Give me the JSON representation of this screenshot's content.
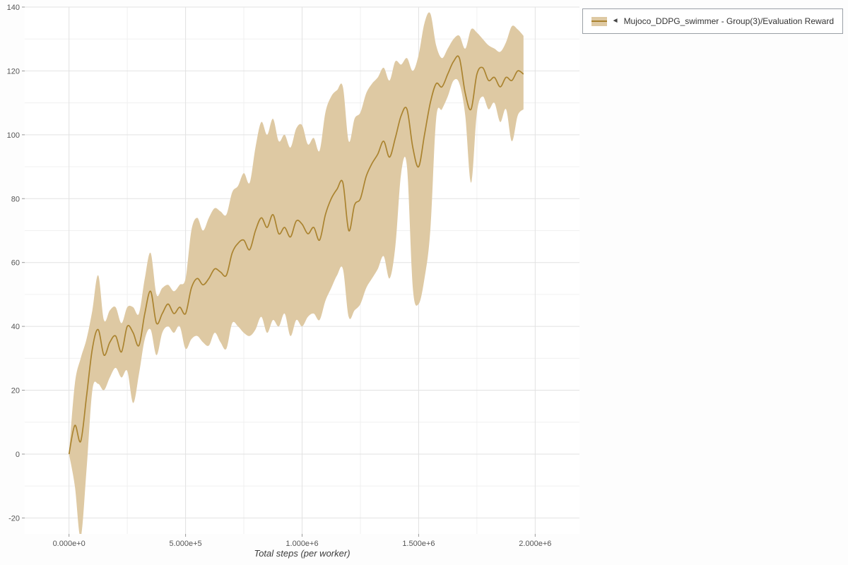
{
  "legend": {
    "collapse_icon": "◄",
    "label": "Mujoco_DDPG_swimmer - Group(3)/Evaluation Reward",
    "line_color": "#aa832f",
    "band_color": "#dec9a3"
  },
  "axes": {
    "x_title": "Total steps (per worker)"
  },
  "chart_data": {
    "type": "line",
    "title": "",
    "xlabel": "Total steps (per worker)",
    "ylabel": "",
    "legend_position": "top-right",
    "grid": true,
    "xlim": [
      -190000,
      2190000
    ],
    "ylim": [
      -25,
      140
    ],
    "xticks": [
      0,
      500000,
      1000000,
      1500000,
      2000000
    ],
    "xtick_labels": [
      "0.000e+0",
      "5.000e+5",
      "1.000e+6",
      "1.500e+6",
      "2.000e+6"
    ],
    "yticks": [
      -20,
      0,
      20,
      40,
      60,
      80,
      100,
      120,
      140
    ],
    "series": [
      {
        "name": "Mujoco_DDPG_swimmer - Group(3)/Evaluation Reward",
        "x": [
          0,
          25000,
          50000,
          75000,
          100000,
          125000,
          150000,
          175000,
          200000,
          225000,
          250000,
          275000,
          300000,
          325000,
          350000,
          375000,
          400000,
          425000,
          450000,
          475000,
          500000,
          525000,
          550000,
          575000,
          600000,
          625000,
          650000,
          675000,
          700000,
          725000,
          750000,
          775000,
          800000,
          825000,
          850000,
          875000,
          900000,
          925000,
          950000,
          975000,
          1000000,
          1025000,
          1050000,
          1075000,
          1100000,
          1125000,
          1150000,
          1175000,
          1200000,
          1225000,
          1250000,
          1275000,
          1300000,
          1325000,
          1350000,
          1375000,
          1400000,
          1425000,
          1450000,
          1475000,
          1500000,
          1525000,
          1550000,
          1575000,
          1600000,
          1625000,
          1650000,
          1675000,
          1700000,
          1725000,
          1750000,
          1775000,
          1800000,
          1825000,
          1850000,
          1875000,
          1900000,
          1925000,
          1950000
        ],
        "mean": [
          0,
          9,
          4,
          18,
          33,
          39,
          31,
          35,
          37,
          32,
          40,
          38,
          34,
          44,
          51,
          41,
          44,
          47,
          44,
          46,
          44,
          52,
          55,
          53,
          55,
          58,
          57,
          56,
          63,
          66,
          67,
          64,
          70,
          74,
          71,
          75,
          69,
          71,
          68,
          73,
          72,
          69,
          71,
          67,
          75,
          80,
          83,
          85,
          70,
          78,
          80,
          87,
          91,
          94,
          98,
          93,
          99,
          106,
          108,
          96,
          90,
          100,
          110,
          116,
          115,
          119,
          123,
          124,
          113,
          108,
          119,
          121,
          117,
          118,
          115,
          118,
          117,
          120,
          119
        ],
        "lower": [
          0,
          -10,
          -26,
          -5,
          20,
          22,
          20,
          24,
          27,
          24,
          26,
          16,
          25,
          36,
          39,
          31,
          38,
          40,
          38,
          40,
          33,
          36,
          37,
          35,
          34,
          38,
          35,
          33,
          41,
          40,
          38,
          37,
          39,
          43,
          38,
          42,
          40,
          44,
          37,
          42,
          40,
          43,
          44,
          42,
          48,
          52,
          56,
          58,
          43,
          45,
          47,
          52,
          55,
          58,
          62,
          55,
          65,
          88,
          90,
          52,
          47,
          55,
          70,
          105,
          108,
          112,
          117,
          116,
          106,
          85,
          107,
          112,
          108,
          110,
          104,
          108,
          98,
          106,
          108
        ],
        "upper": [
          0,
          22,
          30,
          36,
          45,
          56,
          42,
          45,
          46,
          41,
          46,
          46,
          44,
          55,
          63,
          50,
          52,
          53,
          51,
          53,
          55,
          70,
          74,
          70,
          74,
          77,
          76,
          75,
          82,
          84,
          88,
          85,
          96,
          104,
          100,
          105,
          98,
          100,
          96,
          102,
          103,
          97,
          99,
          95,
          107,
          112,
          114,
          115,
          98,
          105,
          107,
          113,
          116,
          118,
          121,
          117,
          123,
          122,
          124,
          120,
          125,
          135,
          138,
          128,
          124,
          127,
          130,
          131,
          127,
          133,
          132,
          130,
          128,
          127,
          126,
          129,
          134,
          133,
          131
        ]
      }
    ]
  }
}
